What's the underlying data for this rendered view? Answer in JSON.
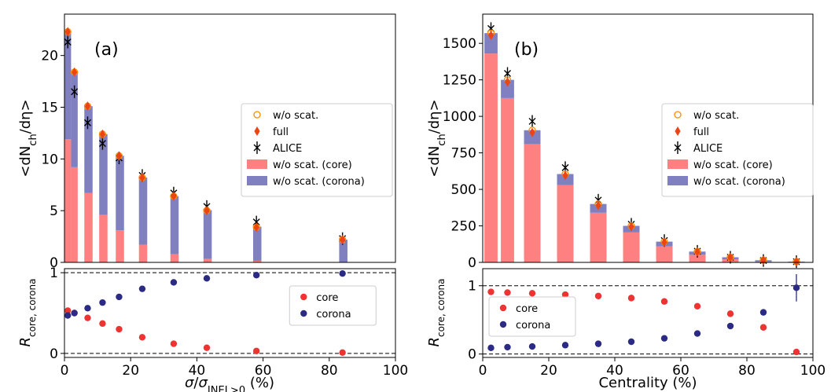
{
  "chart_data": [
    {
      "panel": "a",
      "type": "bar",
      "tag": "(a)",
      "title": "",
      "xlabel": "σ/σINEL>0 (%)",
      "ylabel": "<dNch/dη>",
      "xlim": [
        0,
        100
      ],
      "ylim": [
        0,
        24
      ],
      "yticks": [
        0,
        5,
        10,
        15,
        20
      ],
      "legend_position": "center-right",
      "legend": [
        "w/o scat.",
        "full",
        "ALICE",
        "w/o scat. (core)",
        "w/o scat. (corona)"
      ],
      "bins": [
        {
          "x": 1.0,
          "x0": 0.0,
          "x1": 2.0,
          "core": 11.9,
          "corona": 10.3,
          "wo_scat": 22.3,
          "full": 22.3,
          "alice": 21.3
        },
        {
          "x": 3.0,
          "x0": 2.0,
          "x1": 4.0,
          "core": 9.2,
          "corona": 9.2,
          "wo_scat": 18.4,
          "full": 18.4,
          "alice": 16.5
        },
        {
          "x": 7.0,
          "x0": 6.0,
          "x1": 8.5,
          "core": 6.7,
          "corona": 8.4,
          "wo_scat": 15.1,
          "full": 15.1,
          "alice": 13.5
        },
        {
          "x": 11.5,
          "x0": 10.5,
          "x1": 13.0,
          "core": 4.6,
          "corona": 7.8,
          "wo_scat": 12.4,
          "full": 12.4,
          "alice": 11.5
        },
        {
          "x": 16.5,
          "x0": 15.5,
          "x1": 18.0,
          "core": 3.1,
          "corona": 7.2,
          "wo_scat": 10.3,
          "full": 10.3,
          "alice": 10.1
        },
        {
          "x": 23.5,
          "x0": 22.5,
          "x1": 25.0,
          "core": 1.7,
          "corona": 6.5,
          "wo_scat": 8.2,
          "full": 8.2,
          "alice": 8.4
        },
        {
          "x": 33.0,
          "x0": 32.0,
          "x1": 34.5,
          "core": 0.8,
          "corona": 5.6,
          "wo_scat": 6.4,
          "full": 6.4,
          "alice": 6.7
        },
        {
          "x": 43.0,
          "x0": 42.0,
          "x1": 44.5,
          "core": 0.35,
          "corona": 4.7,
          "wo_scat": 5.0,
          "full": 5.0,
          "alice": 5.4
        },
        {
          "x": 58.0,
          "x0": 57.0,
          "x1": 59.5,
          "core": 0.15,
          "corona": 3.3,
          "wo_scat": 3.4,
          "full": 3.4,
          "alice": 3.9
        },
        {
          "x": 84.0,
          "x0": 83.0,
          "x1": 85.5,
          "core": 0.0,
          "corona": 2.2,
          "wo_scat": 2.2,
          "full": 2.2,
          "alice": 2.3
        }
      ]
    },
    {
      "panel": "a-ratio",
      "type": "scatter",
      "xlabel": "σ/σINEL>0 (%)",
      "ylabel": "Rcore, corona",
      "xlim": [
        0,
        100
      ],
      "ylim": [
        -0.05,
        1.05
      ],
      "yticks": [
        0,
        1
      ],
      "xticks": [
        0,
        20,
        40,
        60,
        80,
        100
      ],
      "legend_position": "center-right",
      "legend": [
        "core",
        "corona"
      ],
      "x": [
        1.0,
        3.0,
        7.0,
        11.5,
        16.5,
        23.5,
        33.0,
        43.0,
        58.0,
        84.0
      ],
      "series": [
        {
          "name": "core",
          "color": "#ee3333",
          "values": [
            0.53,
            0.5,
            0.44,
            0.37,
            0.3,
            0.2,
            0.12,
            0.07,
            0.03,
            0.01
          ]
        },
        {
          "name": "corona",
          "color": "#2b2b85",
          "values": [
            0.47,
            0.5,
            0.56,
            0.63,
            0.7,
            0.8,
            0.88,
            0.93,
            0.97,
            0.99
          ]
        }
      ],
      "reference_lines": [
        0,
        1
      ]
    },
    {
      "panel": "b",
      "type": "bar",
      "tag": "(b)",
      "title": "",
      "xlabel": "Centrality (%)",
      "ylabel": "<dNch/dη>",
      "xlim": [
        0,
        100
      ],
      "ylim": [
        0,
        1700
      ],
      "yticks": [
        0,
        250,
        500,
        750,
        1000,
        1250,
        1500
      ],
      "legend_position": "center-right",
      "legend": [
        "w/o scat.",
        "full",
        "ALICE",
        "w/o scat. (core)",
        "w/o scat. (corona)"
      ],
      "bins": [
        {
          "x": 2.5,
          "x0": 0.5,
          "x1": 4.5,
          "core": 1430,
          "corona": 140,
          "wo_scat": 1570,
          "full": 1555,
          "alice": 1601
        },
        {
          "x": 7.5,
          "x0": 5.5,
          "x1": 9.5,
          "core": 1125,
          "corona": 125,
          "wo_scat": 1250,
          "full": 1235,
          "alice": 1294
        },
        {
          "x": 15.0,
          "x0": 12.5,
          "x1": 17.5,
          "core": 810,
          "corona": 95,
          "wo_scat": 905,
          "full": 890,
          "alice": 966
        },
        {
          "x": 25.0,
          "x0": 22.5,
          "x1": 27.5,
          "core": 530,
          "corona": 75,
          "wo_scat": 605,
          "full": 595,
          "alice": 649
        },
        {
          "x": 35.0,
          "x0": 32.5,
          "x1": 37.5,
          "core": 340,
          "corona": 60,
          "wo_scat": 400,
          "full": 390,
          "alice": 426
        },
        {
          "x": 45.0,
          "x0": 42.5,
          "x1": 47.5,
          "core": 205,
          "corona": 45,
          "wo_scat": 250,
          "full": 245,
          "alice": 261
        },
        {
          "x": 55.0,
          "x0": 52.5,
          "x1": 57.5,
          "core": 110,
          "corona": 32,
          "wo_scat": 142,
          "full": 138,
          "alice": 149
        },
        {
          "x": 65.0,
          "x0": 62.5,
          "x1": 67.5,
          "core": 52,
          "corona": 22,
          "wo_scat": 74,
          "full": 72,
          "alice": 76
        },
        {
          "x": 75.0,
          "x0": 72.5,
          "x1": 77.5,
          "core": 21,
          "corona": 14,
          "wo_scat": 35,
          "full": 34,
          "alice": 35
        },
        {
          "x": 85.0,
          "x0": 82.5,
          "x1": 87.5,
          "core": 6,
          "corona": 9,
          "wo_scat": 15,
          "full": 14,
          "alice": 13
        },
        {
          "x": 95.0,
          "x0": 92.5,
          "x1": 97.5,
          "core": 0,
          "corona": 5,
          "wo_scat": 5,
          "full": 5,
          "alice": 5
        }
      ]
    },
    {
      "panel": "b-ratio",
      "type": "scatter",
      "xlabel": "Centrality (%)",
      "ylabel": "Rcore, corona",
      "xlim": [
        0,
        100
      ],
      "ylim": [
        -0.05,
        1.25
      ],
      "yticks": [
        0,
        1
      ],
      "xticks": [
        0,
        20,
        40,
        60,
        80,
        100
      ],
      "legend_position": "lower-left",
      "legend": [
        "core",
        "corona"
      ],
      "x": [
        2.5,
        7.5,
        15.0,
        25.0,
        35.0,
        45.0,
        55.0,
        65.0,
        75.0,
        85.0,
        95.0
      ],
      "series": [
        {
          "name": "core",
          "color": "#ee3333",
          "values": [
            0.91,
            0.9,
            0.89,
            0.87,
            0.85,
            0.82,
            0.77,
            0.7,
            0.59,
            0.39,
            0.03
          ]
        },
        {
          "name": "corona",
          "color": "#2b2b85",
          "values": [
            0.09,
            0.1,
            0.11,
            0.13,
            0.15,
            0.18,
            0.23,
            0.3,
            0.41,
            0.61,
            0.97
          ]
        }
      ],
      "corona_last_err": 0.2,
      "reference_lines": [
        0,
        1
      ]
    }
  ],
  "colors": {
    "core_bar": "#ff8080",
    "corona_bar": "#8080c0",
    "full_marker": "#ee4411",
    "wo_scat_marker": "#ff8c00",
    "alice_marker": "#000000",
    "ratio_core": "#ee3333",
    "ratio_corona": "#2b2b85"
  }
}
